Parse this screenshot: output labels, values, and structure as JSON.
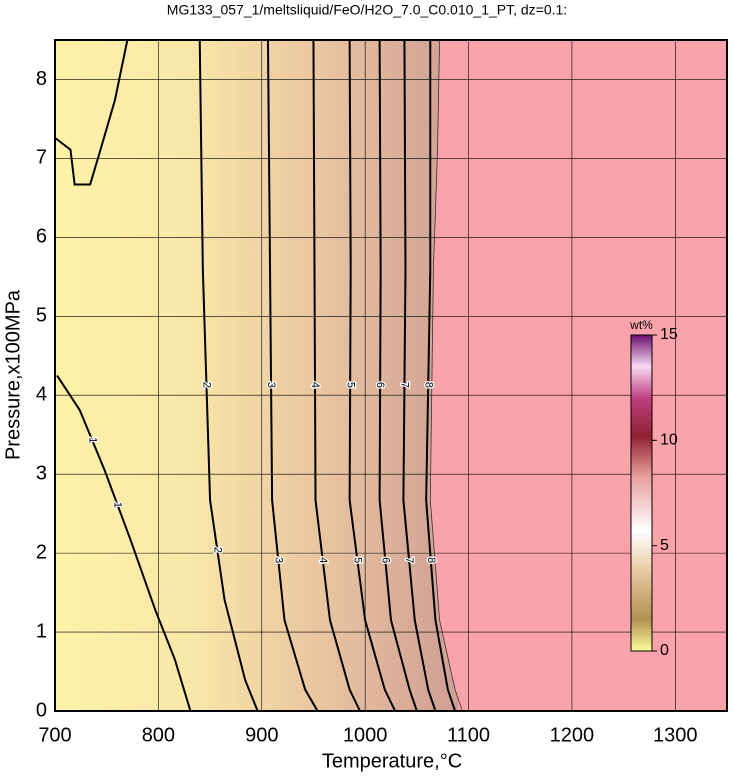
{
  "chart_data": {
    "type": "contour",
    "title": "MG133_057_1/meltsliquid/FeO/H2O_7.0_C0.010_1_PT, dz=0.1:",
    "xlabel": "Temperature,°C",
    "ylabel": "Pressure,x100MPa",
    "xlim": [
      700,
      1350
    ],
    "ylim": [
      0,
      8.5
    ],
    "xticks": [
      700,
      800,
      900,
      1000,
      1100,
      1200,
      1300
    ],
    "yticks": [
      0,
      1,
      2,
      3,
      4,
      5,
      6,
      7,
      8
    ],
    "grid": true,
    "series": [
      {
        "name": "1",
        "color": "#000000",
        "x": [
          702,
          724,
          748,
          773,
          797,
          816,
          831,
          null,
          700,
          715,
          719,
          734,
          744,
          758,
          770
        ],
        "y": [
          4.25,
          3.81,
          3.05,
          2.17,
          1.28,
          0.65,
          0,
          null,
          7.26,
          7.11,
          6.67,
          6.67,
          7.11,
          7.74,
          8.5
        ]
      },
      {
        "name": "2",
        "color": "#000000",
        "x": [
          840,
          843,
          850,
          864,
          884,
          896
        ],
        "y": [
          8.5,
          5.59,
          2.67,
          1.41,
          0.39,
          0
        ]
      },
      {
        "name": "3",
        "color": "#000000",
        "x": [
          906,
          908,
          910,
          922,
          942,
          954
        ],
        "y": [
          8.5,
          5.59,
          2.67,
          1.15,
          0.27,
          0
        ]
      },
      {
        "name": "4",
        "color": "#000000",
        "x": [
          950,
          951,
          952,
          966,
          985,
          995
        ],
        "y": [
          8.5,
          5.59,
          2.67,
          1.15,
          0.27,
          0
        ]
      },
      {
        "name": "5",
        "color": "#000000",
        "x": [
          985,
          986,
          985,
          1000,
          1019,
          1029
        ],
        "y": [
          8.5,
          5.59,
          2.67,
          1.15,
          0.27,
          0
        ]
      },
      {
        "name": "6",
        "color": "#000000",
        "x": [
          1014,
          1015,
          1014,
          1025,
          1043,
          1050
        ],
        "y": [
          8.5,
          5.59,
          2.67,
          1.15,
          0.27,
          0
        ]
      },
      {
        "name": "7",
        "color": "#000000",
        "x": [
          1038,
          1039,
          1037,
          1048,
          1061,
          1068
        ],
        "y": [
          8.5,
          5.59,
          2.67,
          1.15,
          0.27,
          0
        ]
      },
      {
        "name": "8",
        "color": "#000000",
        "x": [
          1063,
          1063,
          1059,
          1068,
          1080,
          1087
        ],
        "y": [
          8.5,
          5.59,
          2.67,
          1.15,
          0.27,
          0
        ]
      }
    ],
    "boundary": {
      "color": "#fba3aa",
      "x": [
        1072,
        1070,
        1066,
        1063,
        1072,
        1087,
        1094
      ],
      "y": [
        8.5,
        7.11,
        5.59,
        2.67,
        1.15,
        0.27,
        0
      ]
    },
    "colorbar": {
      "label": "wt%",
      "lim": [
        0,
        15
      ],
      "ticks": [
        0,
        5,
        10,
        15
      ]
    }
  }
}
